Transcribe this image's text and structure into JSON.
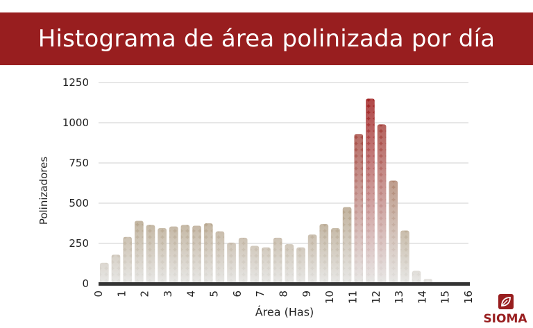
{
  "title": "Histograma de área polinizada por día",
  "logo": {
    "text": "SIOMA",
    "icon": "leaf-icon"
  },
  "colors": {
    "banner": "#981e1f",
    "bar_low": "#e3e3e1",
    "bar_high": "#b5a38a",
    "bar_peak": "#a02020",
    "baseline": "#333333",
    "grid": "#cfcfcf"
  },
  "chart_data": {
    "type": "bar",
    "xlabel": "Área (Has)",
    "ylabel": "Polinizadores",
    "ylim": [
      0,
      1250
    ],
    "yticks": [
      0,
      250,
      500,
      750,
      1000,
      1250
    ],
    "xlim": [
      0,
      16
    ],
    "xticks": [
      "0",
      "1",
      "2",
      "3",
      "4",
      "5",
      "6",
      "7",
      "8",
      "9",
      "10",
      "11",
      "12",
      "13",
      "14",
      "15",
      "16"
    ],
    "bin_width": 0.5,
    "x": [
      0.25,
      0.75,
      1.25,
      1.75,
      2.25,
      2.75,
      3.25,
      3.75,
      4.25,
      4.75,
      5.25,
      5.75,
      6.25,
      6.75,
      7.25,
      7.75,
      8.25,
      8.75,
      9.25,
      9.75,
      10.25,
      10.75,
      11.25,
      11.75,
      12.25,
      12.75,
      13.25,
      13.75,
      14.25,
      14.75,
      15.25,
      15.75
    ],
    "values": [
      130,
      180,
      290,
      390,
      365,
      345,
      355,
      365,
      360,
      375,
      325,
      255,
      285,
      235,
      225,
      285,
      245,
      225,
      305,
      370,
      345,
      475,
      930,
      1150,
      990,
      640,
      330,
      80,
      30,
      10,
      5,
      3
    ],
    "grid": true,
    "legend": "none"
  }
}
